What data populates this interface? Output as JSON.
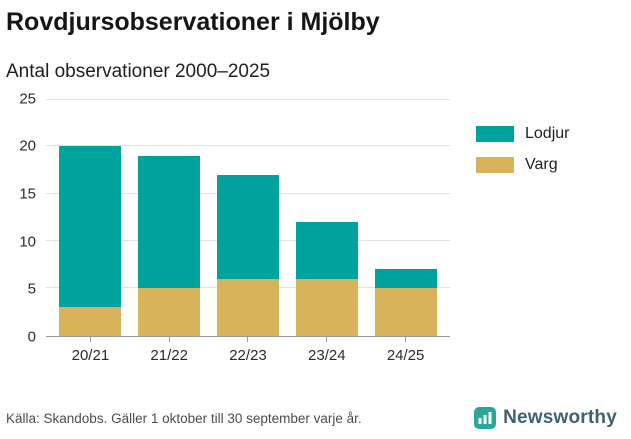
{
  "title": "Rovdjursobservationer i Mjölby",
  "subtitle": "Antal observationer 2000–2025",
  "footer": {
    "source": "Källa: Skandobs. Gäller 1 oktober till 30 september varje år.",
    "brand": "Newsworthy"
  },
  "colors": {
    "lodjur": "#00A39B",
    "varg": "#D9B35C",
    "grid": "#e1e1e1",
    "axis": "#9a9a9a",
    "text": "#1f1f1f",
    "brand_icon": "#2aa79b",
    "brand_text": "#3e6370"
  },
  "chart_data": {
    "type": "bar",
    "stacked": true,
    "title": "Rovdjursobservationer i Mjölby",
    "subtitle": "Antal observationer 2000–2025",
    "categories": [
      "20/21",
      "21/22",
      "22/23",
      "23/24",
      "24/25"
    ],
    "series": [
      {
        "name": "Lodjur",
        "color": "#00A39B",
        "values": [
          17,
          14,
          11,
          6,
          2
        ]
      },
      {
        "name": "Varg",
        "color": "#D9B35C",
        "values": [
          3,
          5,
          6,
          6,
          5
        ]
      }
    ],
    "totals": [
      20,
      19,
      17,
      12,
      7
    ],
    "xlabel": "",
    "ylabel": "",
    "ylim": [
      0,
      25
    ],
    "yticks": [
      0,
      5,
      10,
      15,
      20,
      25
    ],
    "grid": true,
    "legend_position": "right"
  }
}
